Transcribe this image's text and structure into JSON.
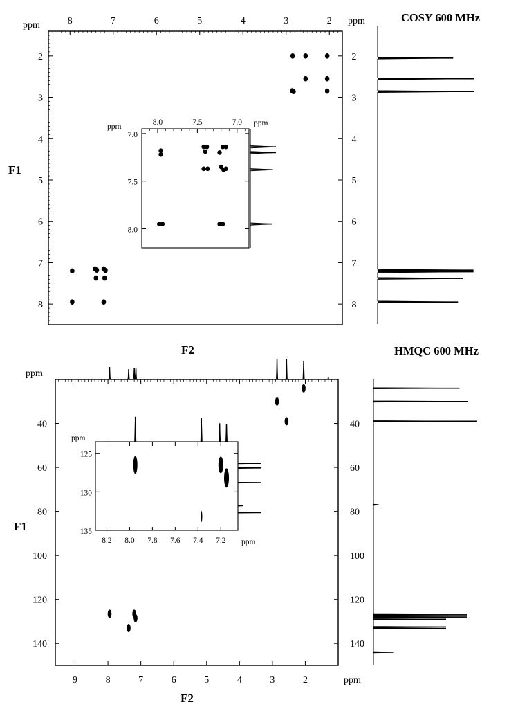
{
  "chart_data": [
    {
      "type": "scatter",
      "title": "COSY 600 MHz",
      "xlabel": "F2",
      "ylabel": "F1",
      "x_unit": "ppm",
      "y_unit": "ppm",
      "xlim": [
        8.5,
        1.7
      ],
      "ylim": [
        1.4,
        8.5
      ],
      "x_ticks": [
        8,
        7,
        6,
        5,
        4,
        3,
        2
      ],
      "y_ticks": [
        2,
        3,
        4,
        5,
        6,
        7,
        8
      ],
      "peaks": [
        {
          "x": 2.85,
          "y": 2.0
        },
        {
          "x": 2.55,
          "y": 2.0
        },
        {
          "x": 2.05,
          "y": 2.0
        },
        {
          "x": 2.55,
          "y": 2.55
        },
        {
          "x": 2.05,
          "y": 2.55
        },
        {
          "x": 2.86,
          "y": 2.84
        },
        {
          "x": 2.83,
          "y": 2.86
        },
        {
          "x": 2.05,
          "y": 2.85
        },
        {
          "x": 7.95,
          "y": 7.2
        },
        {
          "x": 7.42,
          "y": 7.15
        },
        {
          "x": 7.38,
          "y": 7.18
        },
        {
          "x": 7.22,
          "y": 7.15
        },
        {
          "x": 7.18,
          "y": 7.19
        },
        {
          "x": 7.4,
          "y": 7.37
        },
        {
          "x": 7.2,
          "y": 7.37
        },
        {
          "x": 7.95,
          "y": 7.95
        },
        {
          "x": 7.22,
          "y": 7.95
        }
      ],
      "projection_peaks": [
        {
          "ppm": 2.05,
          "height": 0.78
        },
        {
          "ppm": 2.55,
          "height": 1.0
        },
        {
          "ppm": 2.86,
          "height": 1.0
        },
        {
          "ppm": 7.18,
          "height": 0.99
        },
        {
          "ppm": 7.22,
          "height": 0.99
        },
        {
          "ppm": 7.38,
          "height": 0.88
        },
        {
          "ppm": 7.95,
          "height": 0.83
        }
      ],
      "inset": {
        "xlim": [
          8.2,
          6.85
        ],
        "ylim": [
          6.95,
          8.2
        ],
        "x_ticks": [
          8.0,
          7.5,
          7.0
        ],
        "y_ticks": [
          7.0,
          7.5,
          8.0
        ],
        "peaks": [
          {
            "x": 7.96,
            "y": 7.18
          },
          {
            "x": 7.96,
            "y": 7.22
          },
          {
            "x": 7.42,
            "y": 7.14
          },
          {
            "x": 7.38,
            "y": 7.14
          },
          {
            "x": 7.4,
            "y": 7.19
          },
          {
            "x": 7.42,
            "y": 7.37
          },
          {
            "x": 7.37,
            "y": 7.37
          },
          {
            "x": 7.22,
            "y": 7.2
          },
          {
            "x": 7.2,
            "y": 7.35
          },
          {
            "x": 7.18,
            "y": 7.14
          },
          {
            "x": 7.14,
            "y": 7.14
          },
          {
            "x": 7.17,
            "y": 7.38
          },
          {
            "x": 7.14,
            "y": 7.37
          },
          {
            "x": 7.98,
            "y": 7.95
          },
          {
            "x": 7.94,
            "y": 7.95
          },
          {
            "x": 7.22,
            "y": 7.95
          },
          {
            "x": 7.18,
            "y": 7.95
          }
        ],
        "projection_peaks": [
          {
            "ppm": 7.14,
            "height": 1.0
          },
          {
            "ppm": 7.2,
            "height": 1.0
          },
          {
            "ppm": 7.38,
            "height": 0.88
          },
          {
            "ppm": 7.95,
            "height": 0.85
          }
        ]
      }
    },
    {
      "type": "scatter",
      "title": "HMQC 600 MHz",
      "xlabel": "F2",
      "ylabel": "F1",
      "x_unit": "ppm",
      "y_unit": "ppm",
      "xlim": [
        9.6,
        1.0
      ],
      "ylim": [
        20,
        150
      ],
      "x_ticks": [
        9,
        8,
        7,
        6,
        5,
        4,
        3,
        2
      ],
      "y_ticks": [
        40,
        60,
        80,
        100,
        120,
        140
      ],
      "peaks": [
        {
          "x": 2.05,
          "y": 24
        },
        {
          "x": 2.86,
          "y": 30
        },
        {
          "x": 2.57,
          "y": 39
        },
        {
          "x": 7.95,
          "y": 126.5
        },
        {
          "x": 7.2,
          "y": 126.5
        },
        {
          "x": 7.16,
          "y": 128.5
        },
        {
          "x": 7.37,
          "y": 133
        }
      ],
      "top_projection_peaks": [
        {
          "ppm": 7.95,
          "height": 0.6
        },
        {
          "ppm": 7.37,
          "height": 0.5
        },
        {
          "ppm": 7.2,
          "height": 0.56
        },
        {
          "ppm": 7.15,
          "height": 0.56
        },
        {
          "ppm": 2.86,
          "height": 1.0
        },
        {
          "ppm": 2.57,
          "height": 1.0
        },
        {
          "ppm": 2.05,
          "height": 0.9
        },
        {
          "ppm": 1.3,
          "height": 0.1
        }
      ],
      "side_projection_peaks": [
        {
          "ppm": 24,
          "height": 0.83
        },
        {
          "ppm": 30,
          "height": 0.91
        },
        {
          "ppm": 39,
          "height": 1.0
        },
        {
          "ppm": 77,
          "height": 0.05
        },
        {
          "ppm": 127,
          "height": 0.9
        },
        {
          "ppm": 128,
          "height": 0.9
        },
        {
          "ppm": 129,
          "height": 0.7
        },
        {
          "ppm": 132.5,
          "height": 0.7
        },
        {
          "ppm": 133.2,
          "height": 0.7
        },
        {
          "ppm": 144,
          "height": 0.19
        }
      ],
      "inset": {
        "xlim": [
          8.3,
          7.05
        ],
        "ylim": [
          123.5,
          135
        ],
        "x_ticks": [
          8.2,
          8.0,
          7.8,
          7.6,
          7.4,
          7.2
        ],
        "y_ticks": [
          125,
          130,
          135
        ],
        "x_unit": "ppm",
        "y_unit": "ppm",
        "peaks": [
          {
            "x": 7.95,
            "y": 126.5
          },
          {
            "x": 7.2,
            "y": 126.5
          },
          {
            "x": 7.15,
            "y": 128.2
          },
          {
            "x": 7.37,
            "y": 133.2
          }
        ],
        "top_projection_peaks": [
          {
            "ppm": 7.95,
            "height": 0.95
          },
          {
            "ppm": 7.37,
            "height": 0.9
          },
          {
            "ppm": 7.21,
            "height": 0.7
          },
          {
            "ppm": 7.15,
            "height": 0.68
          }
        ],
        "side_projection_peaks": [
          {
            "ppm": 126.3,
            "height": 0.9
          },
          {
            "ppm": 126.9,
            "height": 0.9
          },
          {
            "ppm": 128.8,
            "height": 0.9
          },
          {
            "ppm": 131.8,
            "height": 0.2
          },
          {
            "ppm": 132.7,
            "height": 0.9
          }
        ]
      }
    }
  ]
}
